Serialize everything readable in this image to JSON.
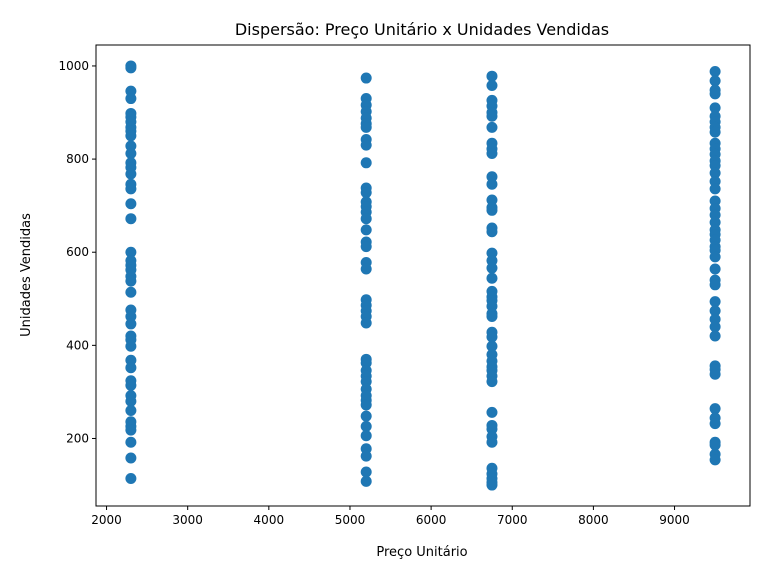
{
  "chart_data": {
    "type": "scatter",
    "title": "Dispersão: Preço Unitário x Unidades Vendidas",
    "xlabel": "Preço Unitário",
    "ylabel": "Unidades Vendidas",
    "xlim": [
      1870,
      9930
    ],
    "ylim": [
      55,
      1045
    ],
    "xticks": [
      2000,
      3000,
      4000,
      5000,
      6000,
      7000,
      8000,
      9000
    ],
    "yticks": [
      200,
      400,
      600,
      800,
      1000
    ],
    "grid": false,
    "marker_color": "#1f77b4",
    "series": [
      {
        "points": [
          {
            "x": 2300,
            "y": 1000
          },
          {
            "x": 2300,
            "y": 996
          },
          {
            "x": 2300,
            "y": 946
          },
          {
            "x": 2300,
            "y": 930
          },
          {
            "x": 2300,
            "y": 898
          },
          {
            "x": 2300,
            "y": 890
          },
          {
            "x": 2300,
            "y": 880
          },
          {
            "x": 2300,
            "y": 868
          },
          {
            "x": 2300,
            "y": 860
          },
          {
            "x": 2300,
            "y": 850
          },
          {
            "x": 2300,
            "y": 828
          },
          {
            "x": 2300,
            "y": 812
          },
          {
            "x": 2300,
            "y": 792
          },
          {
            "x": 2300,
            "y": 782
          },
          {
            "x": 2300,
            "y": 768
          },
          {
            "x": 2300,
            "y": 746
          },
          {
            "x": 2300,
            "y": 736
          },
          {
            "x": 2300,
            "y": 704
          },
          {
            "x": 2300,
            "y": 672
          },
          {
            "x": 2300,
            "y": 600
          },
          {
            "x": 2300,
            "y": 582
          },
          {
            "x": 2300,
            "y": 572
          },
          {
            "x": 2300,
            "y": 562
          },
          {
            "x": 2300,
            "y": 548
          },
          {
            "x": 2300,
            "y": 538
          },
          {
            "x": 2300,
            "y": 514
          },
          {
            "x": 2300,
            "y": 476
          },
          {
            "x": 2300,
            "y": 462
          },
          {
            "x": 2300,
            "y": 446
          },
          {
            "x": 2300,
            "y": 420
          },
          {
            "x": 2300,
            "y": 412
          },
          {
            "x": 2300,
            "y": 398
          },
          {
            "x": 2300,
            "y": 368
          },
          {
            "x": 2300,
            "y": 352
          },
          {
            "x": 2300,
            "y": 324
          },
          {
            "x": 2300,
            "y": 314
          },
          {
            "x": 2300,
            "y": 292
          },
          {
            "x": 2300,
            "y": 280
          },
          {
            "x": 2300,
            "y": 260
          },
          {
            "x": 2300,
            "y": 236
          },
          {
            "x": 2300,
            "y": 226
          },
          {
            "x": 2300,
            "y": 218
          },
          {
            "x": 2300,
            "y": 192
          },
          {
            "x": 2300,
            "y": 158
          },
          {
            "x": 2300,
            "y": 114
          },
          {
            "x": 5200,
            "y": 974
          },
          {
            "x": 5200,
            "y": 930
          },
          {
            "x": 5200,
            "y": 916
          },
          {
            "x": 5200,
            "y": 902
          },
          {
            "x": 5200,
            "y": 888
          },
          {
            "x": 5200,
            "y": 876
          },
          {
            "x": 5200,
            "y": 868
          },
          {
            "x": 5200,
            "y": 842
          },
          {
            "x": 5200,
            "y": 830
          },
          {
            "x": 5200,
            "y": 792
          },
          {
            "x": 5200,
            "y": 738
          },
          {
            "x": 5200,
            "y": 728
          },
          {
            "x": 5200,
            "y": 708
          },
          {
            "x": 5200,
            "y": 698
          },
          {
            "x": 5200,
            "y": 686
          },
          {
            "x": 5200,
            "y": 672
          },
          {
            "x": 5200,
            "y": 648
          },
          {
            "x": 5200,
            "y": 622
          },
          {
            "x": 5200,
            "y": 612
          },
          {
            "x": 5200,
            "y": 578
          },
          {
            "x": 5200,
            "y": 564
          },
          {
            "x": 5200,
            "y": 498
          },
          {
            "x": 5200,
            "y": 486
          },
          {
            "x": 5200,
            "y": 474
          },
          {
            "x": 5200,
            "y": 462
          },
          {
            "x": 5200,
            "y": 448
          },
          {
            "x": 5200,
            "y": 370
          },
          {
            "x": 5200,
            "y": 362
          },
          {
            "x": 5200,
            "y": 346
          },
          {
            "x": 5200,
            "y": 334
          },
          {
            "x": 5200,
            "y": 322
          },
          {
            "x": 5200,
            "y": 306
          },
          {
            "x": 5200,
            "y": 292
          },
          {
            "x": 5200,
            "y": 282
          },
          {
            "x": 5200,
            "y": 272
          },
          {
            "x": 5200,
            "y": 248
          },
          {
            "x": 5200,
            "y": 226
          },
          {
            "x": 5200,
            "y": 206
          },
          {
            "x": 5200,
            "y": 178
          },
          {
            "x": 5200,
            "y": 162
          },
          {
            "x": 5200,
            "y": 128
          },
          {
            "x": 5200,
            "y": 108
          },
          {
            "x": 6750,
            "y": 978
          },
          {
            "x": 6750,
            "y": 958
          },
          {
            "x": 6750,
            "y": 926
          },
          {
            "x": 6750,
            "y": 914
          },
          {
            "x": 6750,
            "y": 900
          },
          {
            "x": 6750,
            "y": 892
          },
          {
            "x": 6750,
            "y": 868
          },
          {
            "x": 6750,
            "y": 834
          },
          {
            "x": 6750,
            "y": 822
          },
          {
            "x": 6750,
            "y": 812
          },
          {
            "x": 6750,
            "y": 762
          },
          {
            "x": 6750,
            "y": 746
          },
          {
            "x": 6750,
            "y": 712
          },
          {
            "x": 6750,
            "y": 696
          },
          {
            "x": 6750,
            "y": 690
          },
          {
            "x": 6750,
            "y": 652
          },
          {
            "x": 6750,
            "y": 644
          },
          {
            "x": 6750,
            "y": 598
          },
          {
            "x": 6750,
            "y": 582
          },
          {
            "x": 6750,
            "y": 566
          },
          {
            "x": 6750,
            "y": 544
          },
          {
            "x": 6750,
            "y": 516
          },
          {
            "x": 6750,
            "y": 504
          },
          {
            "x": 6750,
            "y": 496
          },
          {
            "x": 6750,
            "y": 484
          },
          {
            "x": 6750,
            "y": 468
          },
          {
            "x": 6750,
            "y": 462
          },
          {
            "x": 6750,
            "y": 428
          },
          {
            "x": 6750,
            "y": 418
          },
          {
            "x": 6750,
            "y": 398
          },
          {
            "x": 6750,
            "y": 380
          },
          {
            "x": 6750,
            "y": 366
          },
          {
            "x": 6750,
            "y": 354
          },
          {
            "x": 6750,
            "y": 346
          },
          {
            "x": 6750,
            "y": 334
          },
          {
            "x": 6750,
            "y": 322
          },
          {
            "x": 6750,
            "y": 256
          },
          {
            "x": 6750,
            "y": 228
          },
          {
            "x": 6750,
            "y": 220
          },
          {
            "x": 6750,
            "y": 204
          },
          {
            "x": 6750,
            "y": 192
          },
          {
            "x": 6750,
            "y": 136
          },
          {
            "x": 6750,
            "y": 124
          },
          {
            "x": 6750,
            "y": 114
          },
          {
            "x": 6750,
            "y": 106
          },
          {
            "x": 6750,
            "y": 100
          },
          {
            "x": 9500,
            "y": 988
          },
          {
            "x": 9500,
            "y": 968
          },
          {
            "x": 9500,
            "y": 948
          },
          {
            "x": 9500,
            "y": 940
          },
          {
            "x": 9500,
            "y": 910
          },
          {
            "x": 9500,
            "y": 892
          },
          {
            "x": 9500,
            "y": 880
          },
          {
            "x": 9500,
            "y": 868
          },
          {
            "x": 9500,
            "y": 858
          },
          {
            "x": 9500,
            "y": 834
          },
          {
            "x": 9500,
            "y": 822
          },
          {
            "x": 9500,
            "y": 810
          },
          {
            "x": 9500,
            "y": 796
          },
          {
            "x": 9500,
            "y": 786
          },
          {
            "x": 9500,
            "y": 770
          },
          {
            "x": 9500,
            "y": 752
          },
          {
            "x": 9500,
            "y": 736
          },
          {
            "x": 9500,
            "y": 710
          },
          {
            "x": 9500,
            "y": 694
          },
          {
            "x": 9500,
            "y": 680
          },
          {
            "x": 9500,
            "y": 664
          },
          {
            "x": 9500,
            "y": 648
          },
          {
            "x": 9500,
            "y": 638
          },
          {
            "x": 9500,
            "y": 626
          },
          {
            "x": 9500,
            "y": 612
          },
          {
            "x": 9500,
            "y": 604
          },
          {
            "x": 9500,
            "y": 590
          },
          {
            "x": 9500,
            "y": 564
          },
          {
            "x": 9500,
            "y": 540
          },
          {
            "x": 9500,
            "y": 530
          },
          {
            "x": 9500,
            "y": 494
          },
          {
            "x": 9500,
            "y": 474
          },
          {
            "x": 9500,
            "y": 456
          },
          {
            "x": 9500,
            "y": 440
          },
          {
            "x": 9500,
            "y": 420
          },
          {
            "x": 9500,
            "y": 356
          },
          {
            "x": 9500,
            "y": 348
          },
          {
            "x": 9500,
            "y": 338
          },
          {
            "x": 9500,
            "y": 264
          },
          {
            "x": 9500,
            "y": 244
          },
          {
            "x": 9500,
            "y": 232
          },
          {
            "x": 9500,
            "y": 192
          },
          {
            "x": 9500,
            "y": 186
          },
          {
            "x": 9500,
            "y": 166
          },
          {
            "x": 9500,
            "y": 154
          }
        ]
      }
    ]
  }
}
